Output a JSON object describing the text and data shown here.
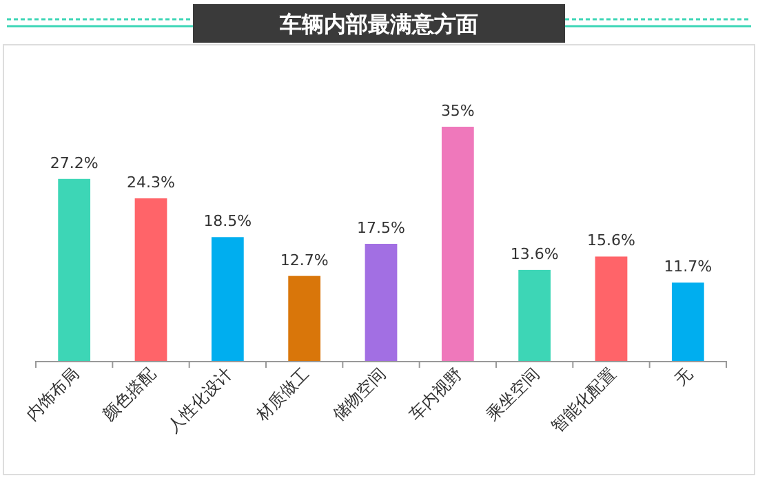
{
  "chart_data": {
    "type": "bar",
    "title": "车辆内部最满意方面",
    "categories": [
      "内饰布局",
      "颜色搭配",
      "人性化设计",
      "材质做工",
      "储物空间",
      "车内视野",
      "乘坐空间",
      "智能化配置",
      "无"
    ],
    "values": [
      27.2,
      24.3,
      18.5,
      12.7,
      17.5,
      35,
      13.6,
      15.6,
      11.7
    ],
    "colors": [
      "#3dd6b6",
      "#ff6469",
      "#00aeef",
      "#d9760a",
      "#a26fe3",
      "#ef78bb",
      "#3dd6b6",
      "#ff6469",
      "#00aeef"
    ],
    "value_labels": [
      "27.2%",
      "24.3%",
      "18.5%",
      "12.7%",
      "17.5%",
      "35%",
      "13.6%",
      "15.6%",
      "11.7%"
    ]
  }
}
